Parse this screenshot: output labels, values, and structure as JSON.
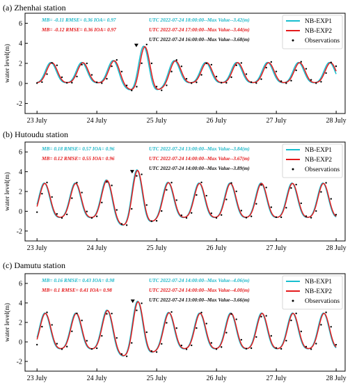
{
  "colors": {
    "exp1": "#17becf",
    "exp2": "#e41a1c",
    "obs": "#000000",
    "stat1": "#1fb8c9",
    "stat2": "#e41a1c",
    "stat3": "#111111"
  },
  "panels": [
    {
      "title": "(a) Zhenhai station",
      "stats": [
        {
          "text": "MB= -0.11  RMSE= 0.36  IOA= 0.97",
          "max": "UTC 2022-07-24 18:00:00--Max Value--3.42(m)"
        },
        {
          "text": "MB= -0.12  RMSE= 0.36  IOA= 0.97",
          "max": "UTC 2022-07-24 17:00:00--Max Value--3.44(m)"
        },
        {
          "text": "",
          "max": "UTC 2022-07-24 16:00:00--Max Value--3.68(m)"
        }
      ]
    },
    {
      "title": "(b) Hutoudu station",
      "stats": [
        {
          "text": "MB= 0.18  RMSE= 0.57  IOA= 0.96",
          "max": "UTC 2022-07-24 13:00:00--Max Value--3.84(m)"
        },
        {
          "text": "MB= 0.12  RMSE= 0.55  IOA= 0.96",
          "max": "UTC 2022-07-24 14:00:00--Max Value--3.67(m)"
        },
        {
          "text": "",
          "max": "UTC 2022-07-24 14:00:00--Max Value--3.89(m)"
        }
      ]
    },
    {
      "title": "(c) Damutu station",
      "stats": [
        {
          "text": "MB= 0.16  RMSE= 0.43  IOA= 0.98",
          "max": "UTC 2022-07-24 14:00:00--Max Value--4.06(m)"
        },
        {
          "text": "MB= 0.1  RMSE= 0.41  IOA= 0.98",
          "max": "UTC 2022-07-24 14:00:00--Max Value--4.00(m)"
        },
        {
          "text": "",
          "max": "UTC 2022-07-24 13:00:00--Max Value--3.66(m)"
        }
      ]
    }
  ],
  "chart_data": [
    {
      "type": "line",
      "title": "(a) Zhenhai station",
      "ylabel": "water level(m)",
      "x_unit": "day of July 2022",
      "xlim": [
        22.8,
        28.15
      ],
      "ylim": [
        -3,
        7
      ],
      "yticks": [
        -2,
        0,
        2,
        4,
        6
      ],
      "xticks": [
        23,
        24,
        25,
        26,
        27,
        28
      ],
      "xticklabels": [
        "23 July",
        "24 July",
        "25 July",
        "26 July",
        "27 July",
        "28 July"
      ],
      "legend": [
        "NB-EXP1",
        "NB-EXP2",
        "Observations"
      ],
      "legend_position": "top-right",
      "tide": {
        "start": 23.0,
        "end": 28.0,
        "period": 0.5175,
        "phase": 23.25,
        "mean": 0.9,
        "amp_base": 1.1,
        "amp_peak": 1.5,
        "peak_center": 24.8,
        "peak_width": 0.35,
        "exp1_shift": 0.02,
        "exp2_shift": 0.0,
        "exp1_scale": 1.02,
        "exp2_scale": 1.0,
        "obs_shift": -0.03,
        "obs_scale": 1.08
      },
      "max_marker": {
        "x": 24.66,
        "y": 3.68
      },
      "series": [
        {
          "name": "NB-EXP1",
          "style": "line"
        },
        {
          "name": "NB-EXP2",
          "style": "line"
        },
        {
          "name": "Observations",
          "style": "dots",
          "step_days": 0.0833
        }
      ]
    },
    {
      "type": "line",
      "title": "(b) Hutoudu station",
      "ylabel": "water level(m)",
      "x_unit": "day of July 2022",
      "xlim": [
        22.8,
        28.15
      ],
      "ylim": [
        -3,
        7
      ],
      "yticks": [
        -2,
        0,
        2,
        4,
        6
      ],
      "xticks": [
        23,
        24,
        25,
        26,
        27,
        28
      ],
      "xticklabels": [
        "23 July",
        "24 July",
        "25 July",
        "26 July",
        "27 July",
        "28 July"
      ],
      "legend": [
        "NB-EXP1",
        "NB-EXP2",
        "Observations"
      ],
      "legend_position": "top-right",
      "tide": {
        "start": 23.0,
        "end": 28.0,
        "period": 0.5175,
        "phase": 23.13,
        "mean": 0.8,
        "amp_base": 1.9,
        "amp_peak": 1.3,
        "peak_center": 24.6,
        "peak_width": 0.35,
        "exp1_shift": 0.01,
        "exp2_shift": 0.0,
        "exp1_scale": 1.02,
        "exp2_scale": 1.0,
        "obs_shift": -0.03,
        "obs_scale": 1.05
      },
      "max_marker": {
        "x": 24.59,
        "y": 3.89
      },
      "series": [
        {
          "name": "NB-EXP1",
          "style": "line"
        },
        {
          "name": "NB-EXP2",
          "style": "line"
        },
        {
          "name": "Observations",
          "style": "dots",
          "step_days": 0.0833
        }
      ]
    },
    {
      "type": "line",
      "title": "(c) Damutu station",
      "ylabel": "water level(m)",
      "x_unit": "day of July 2022",
      "xlim": [
        22.8,
        28.15
      ],
      "ylim": [
        -3,
        7
      ],
      "yticks": [
        -2,
        0,
        2,
        4,
        6
      ],
      "xticks": [
        23,
        24,
        25,
        26,
        27,
        28
      ],
      "xticklabels": [
        "23 July",
        "24 July",
        "25 July",
        "26 July",
        "27 July",
        "28 July"
      ],
      "legend": [
        "NB-EXP1",
        "NB-EXP2",
        "Observations"
      ],
      "legend_position": "top-right",
      "tide": {
        "start": 23.0,
        "end": 28.0,
        "period": 0.5175,
        "phase": 23.14,
        "mean": 0.8,
        "amp_base": 2.0,
        "amp_peak": 1.2,
        "peak_center": 24.6,
        "peak_width": 0.35,
        "exp1_shift": 0.01,
        "exp2_shift": 0.0,
        "exp1_scale": 1.02,
        "exp2_scale": 1.0,
        "obs_shift": -0.03,
        "obs_scale": 1.05
      },
      "max_marker": {
        "x": 24.6,
        "y": 4.06
      },
      "series": [
        {
          "name": "NB-EXP1",
          "style": "line"
        },
        {
          "name": "NB-EXP2",
          "style": "line"
        },
        {
          "name": "Observations",
          "style": "dots",
          "step_days": 0.0833
        }
      ]
    }
  ]
}
